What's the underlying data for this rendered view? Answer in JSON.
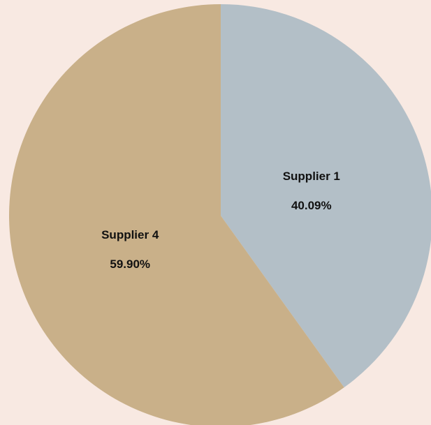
{
  "chart_data": {
    "type": "pie",
    "title": "",
    "background": "#f8e9e2",
    "slices": [
      {
        "label": "Supplier 1",
        "value": 40.09,
        "value_label": "40.09%",
        "color": "#b3bfc7"
      },
      {
        "label": "Supplier 4",
        "value": 59.9,
        "value_label": "59.90%",
        "color": "#c9b089"
      }
    ],
    "start_angle_deg": 0,
    "direction": "clockwise",
    "legend": "none"
  }
}
